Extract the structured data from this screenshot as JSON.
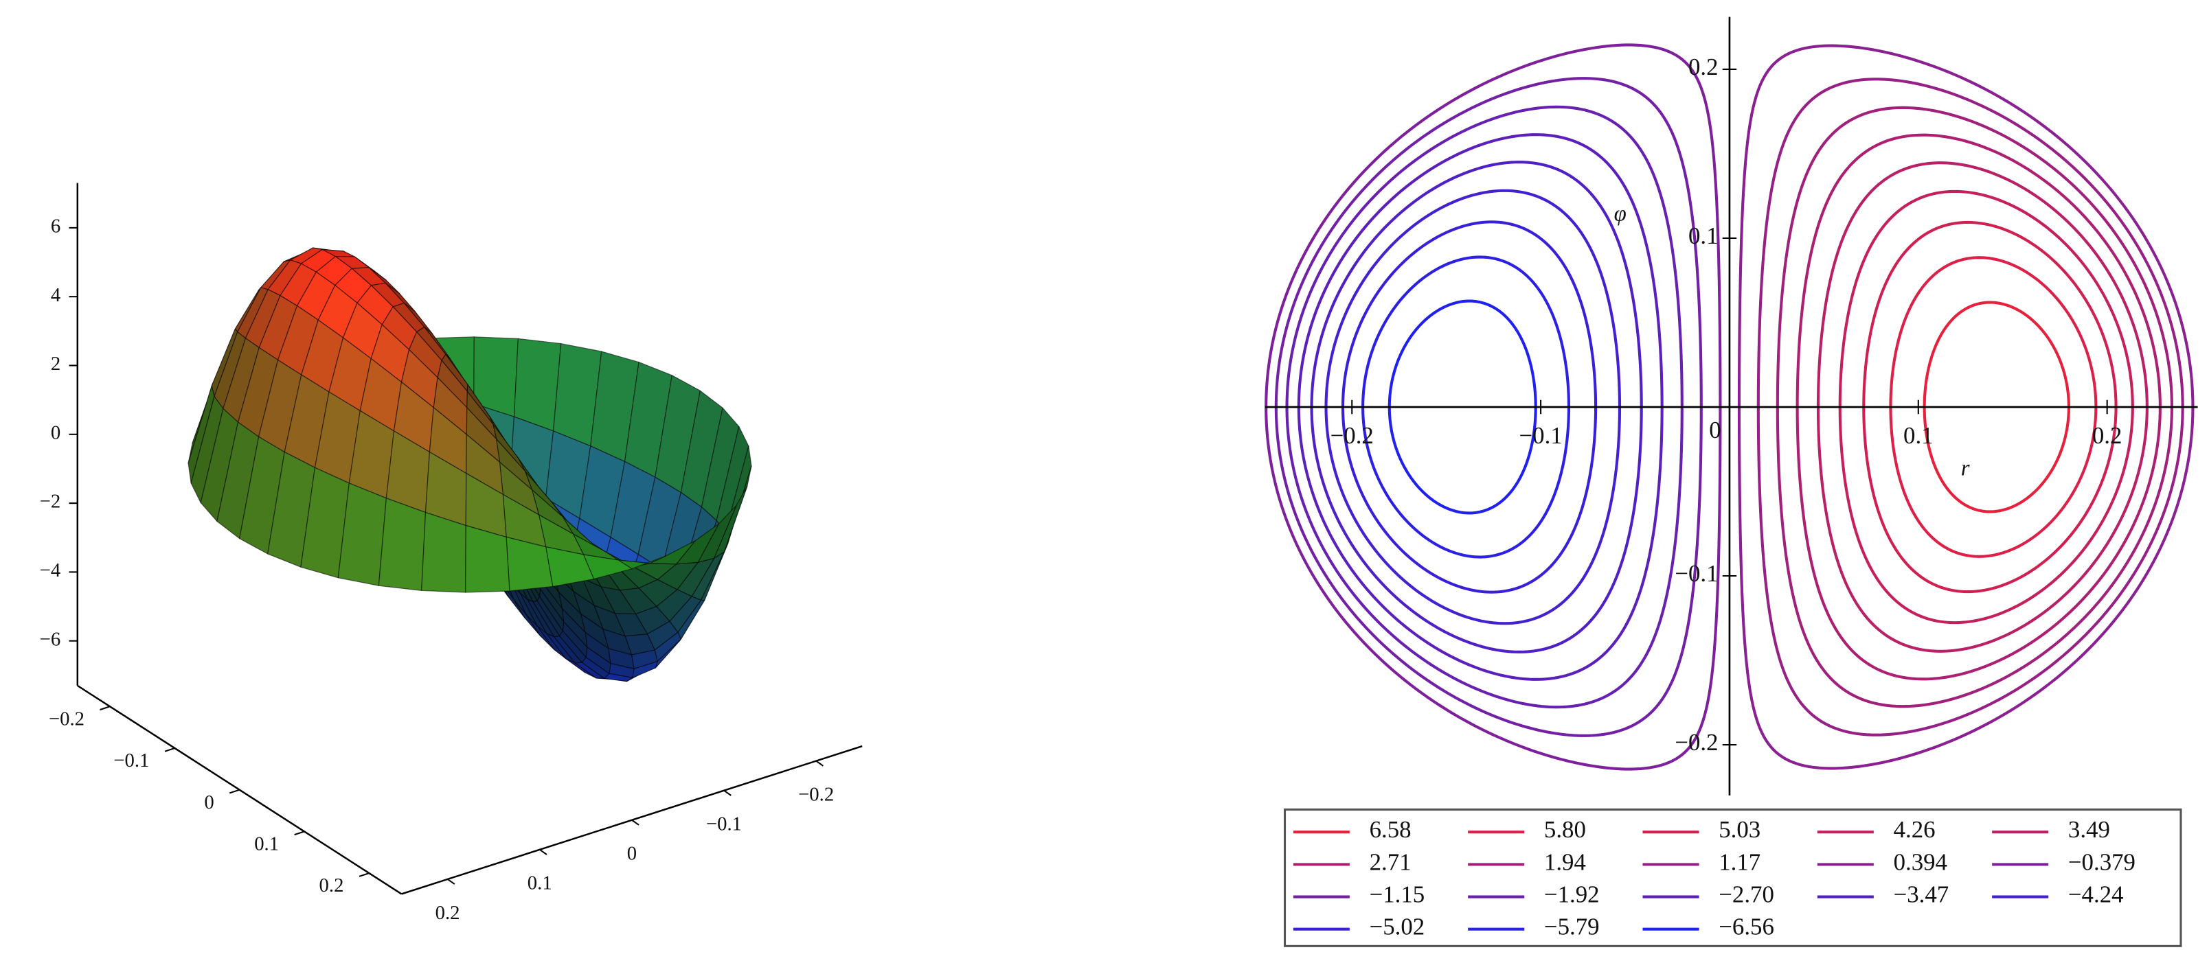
{
  "chart_data": [
    {
      "type": "surface3d",
      "xlim": [
        -0.25,
        0.25
      ],
      "ylim": [
        -0.25,
        0.25
      ],
      "zlim": [
        -7.3,
        7.3
      ],
      "xticks": [
        {
          "value": -0.2,
          "label": "−0.2"
        },
        {
          "value": -0.1,
          "label": "−0.1"
        },
        0,
        0.1,
        0.2
      ],
      "yticks": [
        {
          "value": -0.2,
          "label": "−0.2"
        },
        {
          "value": -0.1,
          "label": "−0.1"
        },
        0,
        0.1,
        0.2
      ],
      "zticks": [
        {
          "value": -6,
          "label": "−6"
        },
        {
          "value": -4,
          "label": "−4"
        },
        {
          "value": -2,
          "label": "−2"
        },
        0,
        2,
        4,
        6
      ]
    },
    {
      "type": "contour",
      "x_label": "r",
      "y_label": "φ",
      "xlim": [
        -0.246,
        0.248
      ],
      "ylim": [
        -0.23,
        0.231
      ],
      "xticks": [
        {
          "value": -0.2,
          "label": "−0.2"
        },
        {
          "value": -0.1,
          "label": "−0.1"
        },
        0,
        0.1,
        0.2
      ],
      "yticks": [
        {
          "value": -0.2,
          "label": "−0.2"
        },
        {
          "value": -0.1,
          "label": "−0.1"
        },
        0.1,
        0.2
      ],
      "levels": [
        6.58,
        5.8,
        5.03,
        4.26,
        3.49,
        2.71,
        1.94,
        1.17,
        0.394,
        -0.379,
        -1.15,
        -1.92,
        -2.7,
        -3.47,
        -4.24,
        -5.02,
        -5.79,
        -6.56
      ],
      "level_labels": [
        "6.58",
        "5.80",
        "5.03",
        "4.26",
        "3.49",
        "2.71",
        "1.94",
        "1.17",
        "0.394",
        "−0.379",
        "−1.15",
        "−1.92",
        "−2.70",
        "−3.47",
        "−4.24",
        "−5.02",
        "−5.79",
        "−6.56"
      ],
      "level_colors": [
        "#e8203c",
        "#dc2047",
        "#d02051",
        "#c5205c",
        "#b92066",
        "#ad2071",
        "#a1207c",
        "#962086",
        "#8a2091",
        "#7e209b",
        "#7220a6",
        "#6720b0",
        "#5b20bb",
        "#4f20c6",
        "#4320d0",
        "#3820db",
        "#2c20e5",
        "#2020f0"
      ]
    }
  ]
}
